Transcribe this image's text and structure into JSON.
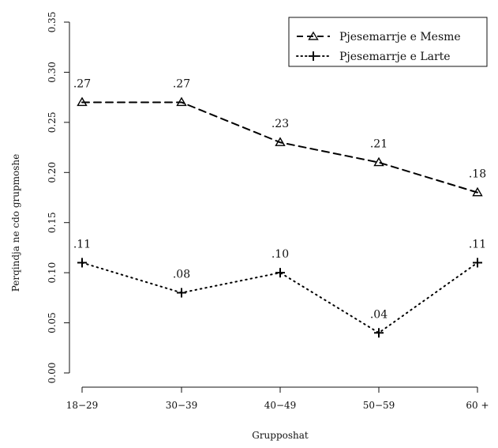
{
  "chart_data": {
    "type": "line",
    "title": "",
    "xlabel": "Grupposhat",
    "ylabel": "Perqindja ne cdo grupmoshe",
    "categories": [
      "18−29",
      "30−39",
      "40−49",
      "50−59",
      "60 +"
    ],
    "ylim": [
      0,
      0.35
    ],
    "yticks": [
      "0.00",
      "0.05",
      "0.10",
      "0.15",
      "0.20",
      "0.25",
      "0.30",
      "0.35"
    ],
    "grid": false,
    "legend_position": "top-right",
    "series": [
      {
        "name": "Pjesemarrje e Mesme",
        "values": [
          0.27,
          0.27,
          0.23,
          0.21,
          0.18
        ],
        "labels": [
          ".27",
          ".27",
          ".23",
          ".21",
          ".18"
        ],
        "line_style": "dashed",
        "marker": "triangle",
        "color": "#000000"
      },
      {
        "name": "Pjesemarrje e Larte",
        "values": [
          0.11,
          0.08,
          0.1,
          0.04,
          0.11
        ],
        "labels": [
          ".11",
          ".08",
          ".10",
          ".04",
          ".11"
        ],
        "line_style": "dotted",
        "marker": "plus",
        "color": "#000000"
      }
    ]
  }
}
